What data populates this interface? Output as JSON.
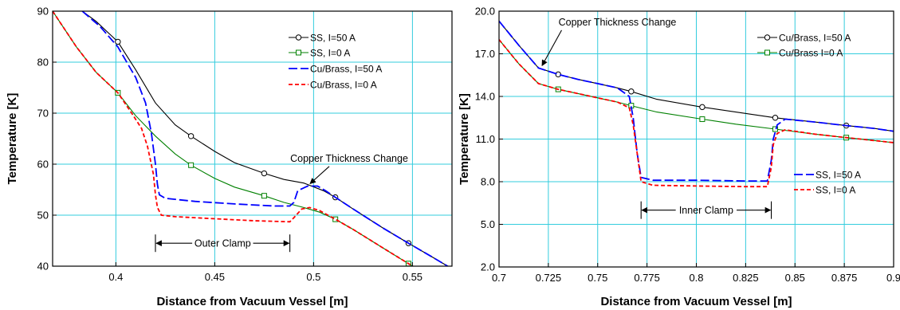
{
  "colors": {
    "grid": "#33ccdd",
    "black": "#000000",
    "green": "#008000",
    "blue": "#0000ff",
    "red": "#ff0000"
  },
  "chart_data": [
    {
      "type": "line",
      "xlabel": "Distance from Vacuum Vessel [m]",
      "ylabel": "Temperature [K]",
      "xlim": [
        0.368,
        0.57
      ],
      "ylim": [
        40,
        90
      ],
      "xticks": [
        0.4,
        0.45,
        0.5,
        0.55
      ],
      "xtick_labels": [
        "0.4",
        "0.45",
        "0.5",
        "0.55"
      ],
      "yticks": [
        40,
        50,
        60,
        70,
        80,
        90
      ],
      "ytick_labels": [
        "40",
        "50",
        "60",
        "70",
        "80",
        "90"
      ],
      "grid": true,
      "legend_position": "top-right",
      "series": [
        {
          "name": "SS, I=50 A",
          "color": "#000000",
          "dash": "solid",
          "marker": "circle",
          "x": [
            0.383,
            0.39,
            0.401,
            0.41,
            0.42,
            0.43,
            0.438,
            0.45,
            0.46,
            0.475,
            0.485,
            0.495,
            0.505,
            0.511,
            0.52,
            0.535,
            0.548,
            0.56,
            0.57
          ],
          "y": [
            90,
            88,
            84,
            78.5,
            72,
            67.7,
            65.5,
            62.5,
            60.3,
            58.2,
            57,
            56.3,
            54.8,
            53.5,
            51.2,
            47.5,
            44.5,
            41.8,
            39.5
          ],
          "markers_x": [
            0.401,
            0.438,
            0.475,
            0.511,
            0.548
          ]
        },
        {
          "name": "SS, I=0 A",
          "color": "#008000",
          "dash": "solid",
          "marker": "square",
          "x": [
            0.368,
            0.38,
            0.39,
            0.401,
            0.41,
            0.42,
            0.43,
            0.438,
            0.45,
            0.46,
            0.475,
            0.485,
            0.495,
            0.503,
            0.511,
            0.52,
            0.535,
            0.548,
            0.556
          ],
          "y": [
            90,
            83,
            78,
            74,
            69.5,
            65.5,
            62,
            59.8,
            57.2,
            55.5,
            53.8,
            52.5,
            51.5,
            50.6,
            49.2,
            47.2,
            43.6,
            40.5,
            38.6
          ],
          "markers_x": [
            0.401,
            0.438,
            0.475,
            0.511,
            0.548
          ]
        },
        {
          "name": "Cu/Brass, I=50 A",
          "color": "#0000ff",
          "dash": "long-dash",
          "marker": "none",
          "x": [
            0.383,
            0.392,
            0.401,
            0.41,
            0.415,
            0.418,
            0.42,
            0.421,
            0.422,
            0.425,
            0.44,
            0.46,
            0.48,
            0.488,
            0.49,
            0.492,
            0.497,
            0.502,
            0.506,
            0.511,
            0.52,
            0.535,
            0.548,
            0.56,
            0.57
          ],
          "y": [
            90,
            87,
            83,
            77,
            72,
            66,
            60,
            56,
            54,
            53.3,
            52.7,
            52.2,
            51.8,
            51.8,
            52.5,
            54.8,
            55.7,
            55.7,
            54.8,
            53.5,
            51.2,
            47.5,
            44.5,
            41.8,
            39.5
          ]
        },
        {
          "name": "Cu/Brass, I=0 A",
          "color": "#ff0000",
          "dash": "short-dash",
          "marker": "none",
          "x": [
            0.368,
            0.38,
            0.39,
            0.401,
            0.408,
            0.413,
            0.416,
            0.419,
            0.42,
            0.421,
            0.423,
            0.43,
            0.45,
            0.47,
            0.488,
            0.49,
            0.494,
            0.498,
            0.503,
            0.511,
            0.52,
            0.535,
            0.548,
            0.556
          ],
          "y": [
            90,
            83,
            78,
            74,
            70,
            67,
            63.5,
            58,
            54,
            51.5,
            50,
            49.7,
            49.3,
            48.9,
            48.7,
            49.5,
            51.2,
            51.5,
            50.9,
            49.2,
            47.2,
            43.6,
            40.5,
            38.6
          ]
        }
      ],
      "annotations": [
        {
          "text": "Copper Thickness Change",
          "at": [
            0.497,
            55.7
          ],
          "label_at": [
            0.518,
            60.5
          ]
        },
        {
          "text": "Outer Clamp",
          "range_x": [
            0.42,
            0.488
          ],
          "y": 44.5
        }
      ]
    },
    {
      "type": "line",
      "xlabel": "Distance from Vacuum Vessel [m]",
      "ylabel": "Temperature [K]",
      "xlim": [
        0.7,
        0.9
      ],
      "ylim": [
        2.0,
        20.0
      ],
      "xticks": [
        0.7,
        0.725,
        0.75,
        0.775,
        0.8,
        0.825,
        0.85,
        0.875,
        0.9
      ],
      "xtick_labels": [
        "0.7",
        "0.725",
        "0.75",
        "0.775",
        "0.8",
        "0.825",
        "0.85",
        "0.875",
        "0.9"
      ],
      "yticks": [
        2.0,
        5.0,
        8.0,
        11.0,
        14.0,
        17.0,
        20.0
      ],
      "ytick_labels": [
        "2.0",
        "5.0",
        "8.0",
        "11.0",
        "14.0",
        "17.0",
        "20.0"
      ],
      "grid": true,
      "legend_position": "top-right and middle-right",
      "series": [
        {
          "name": "Cu/Brass, I=50 A",
          "color": "#000000",
          "dash": "solid",
          "marker": "circle",
          "x": [
            0.7,
            0.71,
            0.72,
            0.73,
            0.74,
            0.75,
            0.76,
            0.767,
            0.78,
            0.803,
            0.82,
            0.84,
            0.86,
            0.876,
            0.89,
            0.9
          ],
          "y": [
            19.3,
            17.6,
            16.0,
            15.55,
            15.2,
            14.9,
            14.6,
            14.35,
            13.8,
            13.25,
            12.9,
            12.5,
            12.2,
            11.95,
            11.75,
            11.55
          ],
          "markers_x": [
            0.73,
            0.767,
            0.803,
            0.84,
            0.876
          ]
        },
        {
          "name": "Cu/Brass I=0 A",
          "color": "#008000",
          "dash": "solid",
          "marker": "square",
          "x": [
            0.7,
            0.71,
            0.72,
            0.73,
            0.74,
            0.75,
            0.76,
            0.767,
            0.78,
            0.803,
            0.82,
            0.84,
            0.86,
            0.876,
            0.89,
            0.9
          ],
          "y": [
            18.0,
            16.3,
            14.9,
            14.5,
            14.2,
            13.9,
            13.6,
            13.35,
            12.9,
            12.4,
            12.05,
            11.7,
            11.35,
            11.1,
            10.9,
            10.75
          ],
          "markers_x": [
            0.73,
            0.767,
            0.803,
            0.84,
            0.876
          ]
        },
        {
          "name": "SS, I=50 A",
          "color": "#0000ff",
          "dash": "long-dash",
          "marker": "none",
          "x": [
            0.7,
            0.71,
            0.72,
            0.73,
            0.74,
            0.75,
            0.76,
            0.766,
            0.768,
            0.77,
            0.772,
            0.778,
            0.8,
            0.825,
            0.836,
            0.838,
            0.839,
            0.841,
            0.845,
            0.86,
            0.876,
            0.89,
            0.9
          ],
          "y": [
            19.3,
            17.6,
            16.0,
            15.55,
            15.2,
            14.9,
            14.6,
            14.0,
            12.5,
            10.0,
            8.3,
            8.1,
            8.1,
            8.05,
            8.05,
            9.5,
            11.0,
            12.0,
            12.4,
            12.2,
            11.95,
            11.75,
            11.55
          ]
        },
        {
          "name": "SS, I=0 A",
          "color": "#ff0000",
          "dash": "short-dash",
          "marker": "none",
          "x": [
            0.7,
            0.71,
            0.72,
            0.73,
            0.74,
            0.75,
            0.76,
            0.766,
            0.768,
            0.77,
            0.772,
            0.778,
            0.8,
            0.825,
            0.836,
            0.838,
            0.839,
            0.841,
            0.845,
            0.86,
            0.876,
            0.89,
            0.9
          ],
          "y": [
            18.0,
            16.3,
            14.9,
            14.5,
            14.2,
            13.9,
            13.6,
            13.2,
            12.0,
            10.0,
            8.0,
            7.75,
            7.7,
            7.65,
            7.65,
            9.0,
            10.6,
            11.4,
            11.65,
            11.35,
            11.1,
            10.9,
            10.75
          ]
        }
      ],
      "annotations": [
        {
          "text": "Copper Thickness Change",
          "at": [
            0.721,
            16.0
          ],
          "label_at": [
            0.76,
            19.0
          ]
        },
        {
          "text": "Inner Clamp",
          "range_x": [
            0.772,
            0.838
          ],
          "y": 6.0
        }
      ]
    }
  ]
}
